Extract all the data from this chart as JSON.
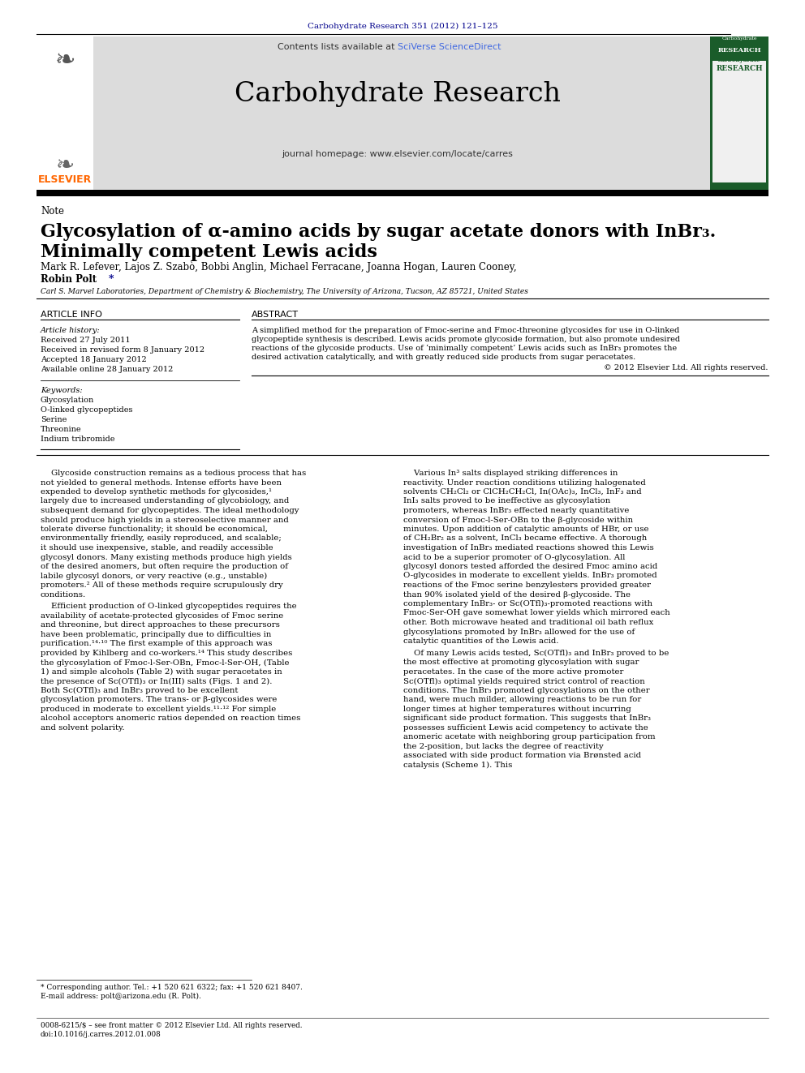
{
  "page_width": 9.92,
  "page_height": 13.23,
  "bg_color": "#ffffff",
  "top_journal_ref": "Carbohydrate Research 351 (2012) 121–125",
  "journal_ref_color": "#00008B",
  "journal_name": "Carbohydrate Research",
  "journal_homepage": "journal homepage: www.elsevier.com/locate/carres",
  "contents_text": "Contents lists available at ",
  "sciverse_text": "SciVerse ScienceDirect",
  "note_label": "Note",
  "article_title_line1": "Glycosylation of α-amino acids by sugar acetate donors with InBr₃.",
  "article_title_line2": "Minimally competent Lewis acids",
  "authors_line1": "Mark R. Lefever, Lajos Z. Szabò, Bobbi Anglin, Michael Ferracane, Joanna Hogan, Lauren Cooney,",
  "authors_line2_plain": "Robin Polt",
  "affiliation": "Carl S. Marvel Laboratories, Department of Chemistry & Biochemistry, The University of Arizona, Tucson, AZ 85721, United States",
  "article_info_title": "ARTICLE INFO",
  "abstract_title": "ABSTRACT",
  "article_history_label": "Article history:",
  "received": "Received 27 July 2011",
  "revised": "Received in revised form 8 January 2012",
  "accepted": "Accepted 18 January 2012",
  "available": "Available online 28 January 2012",
  "keywords_label": "Keywords:",
  "keywords": [
    "Glycosylation",
    "O-linked glycopeptides",
    "Serine",
    "Threonine",
    "Indium tribromide"
  ],
  "abstract_lines": [
    "A simplified method for the preparation of Fmoc-serine and Fmoc-threonine glycosides for use in O-linked",
    "glycopeptide synthesis is described. Lewis acids promote glycoside formation, but also promote undesired",
    "reactions of the glycoside products. Use of ‘minimally competent’ Lewis acids such as InBr₃ promotes the",
    "desired activation catalytically, and with greatly reduced side products from sugar peracetates."
  ],
  "copyright": "© 2012 Elsevier Ltd. All rights reserved.",
  "body_col1_para1": "Glycoside construction remains as a tedious process that has not yielded to general methods. Intense efforts have been expended to develop synthetic methods for glycosides,¹ largely due to increased understanding of glycobiology, and subsequent demand for glycopeptides. The ideal methodology should produce high yields in a stereoselective manner and tolerate diverse functionality; it should be economical, environmentally friendly, easily reproduced, and scalable; it should use inexpensive, stable, and readily accessible glycosyl donors. Many existing methods produce high yields of the desired anomers, but often require the production of labile glycosyl donors, or very reactive (e.g., unstable) promoters.² All of these methods require scrupulously dry conditions.",
  "body_col1_para2": "Efficient production of O-linked glycopeptides requires the availability of acetate-protected glycosides of Fmoc serine and threonine, but direct approaches to these precursors have been problematic, principally due to difficulties in purification.¹⁴·¹⁰ The first example of this approach was provided by Kihlberg and co-workers.¹⁴ This study describes the glycosylation of Fmoc-l-Ser-OBn, Fmoc-l-Ser-OH, (Table 1) and simple alcohols (Table 2) with sugar peracetates in the presence of Sc(OTfl)₃ or In(III) salts (Figs. 1 and 2). Both Sc(OTfl)₃ and InBr₃ proved to be excellent glycosylation promoters. The trans- or β-glycosides were produced in moderate to excellent yields.¹¹·¹² For simple alcohol acceptors anomeric ratios depended on reaction times and solvent polarity.",
  "body_col2_para1": "Various In³ salts displayed striking differences in reactivity. Under reaction conditions utilizing halogenated solvents CH₂Cl₂ or ClCH₂CH₂Cl, In(OAc)₃, InCl₃, InF₃ and InI₃ salts proved to be ineffective as glycosylation promoters, whereas InBr₃ effected nearly quantitative conversion of Fmoc-l-Ser-OBn to the β-glycoside within minutes. Upon addition of catalytic amounts of HBr, or use of CH₂Br₂ as a solvent, InCl₃ became effective. A thorough investigation of InBr₃ mediated reactions showed this Lewis acid to be a superior promoter of O-glycosylation. All glycosyl donors tested afforded the desired Fmoc amino acid O-glycosides in moderate to excellent yields. InBr₃ promoted reactions of the Fmoc serine benzylesters provided greater than 90% isolated yield of the desired β-glycoside. The complementary InBr₃- or Sc(OTfl)₃-promoted reactions with Fmoc-Ser-OH gave somewhat lower yields which mirrored each other. Both microwave heated and traditional oil bath reflux glycosylations promoted by InBr₃ allowed for the use of catalytic quantities of the Lewis acid.",
  "body_col2_para2": "Of many Lewis acids tested, Sc(OTfl)₃ and InBr₃ proved to be the most effective at promoting glycosylation with sugar peracetates. In the case of the more active promoter Sc(OTfl)₃ optimal yields required strict control of reaction conditions. The InBr₃ promoted glycosylations on the other hand, were much milder, allowing reactions to be run for longer times at higher temperatures without incurring significant side product formation. This suggests that InBr₃ possesses sufficient Lewis acid competency to activate the anomeric acetate with neighboring group participation from the 2-position, but lacks the degree of reactivity associated with side product formation via Brønsted acid catalysis (Scheme 1). This",
  "footnote": "* Corresponding author. Tel.: +1 520 621 6322; fax: +1 520 621 8407.",
  "email_line": "E-mail address: polt@arizona.edu (R. Polt).",
  "footer_left": "0008-6215/$ – see front matter © 2012 Elsevier Ltd. All rights reserved.",
  "footer_doi": "doi:10.1016/j.carres.2012.01.008",
  "elsevier_color": "#FF6600",
  "link_color": "#00008B",
  "sciverse_color": "#4169E1",
  "header_bg": "#dcdcdc",
  "cover_green": "#1a5c2a"
}
